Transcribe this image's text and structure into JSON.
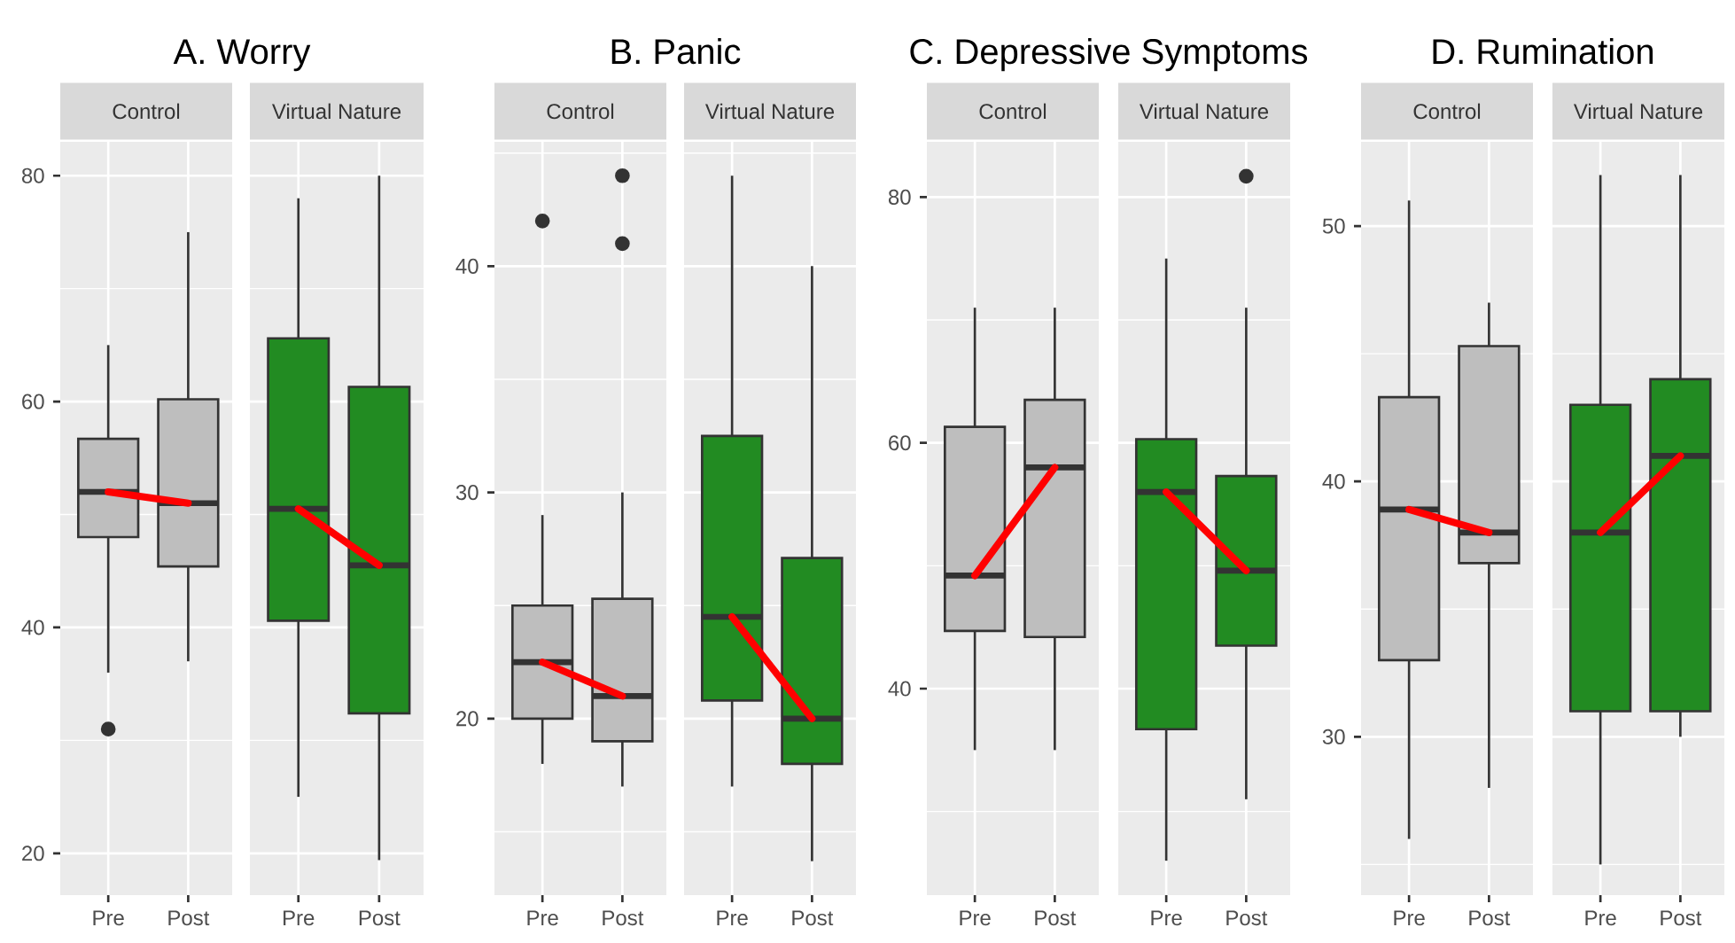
{
  "chart_data": [
    {
      "type": "box",
      "title": "A. Worry",
      "subtitle": "Control",
      "categories": [
        "Pre",
        "Post"
      ],
      "series": [
        {
          "color": "#bebebe",
          "boxes": [
            {
              "low": 36,
              "q1": 48,
              "median": 52,
              "q3": 56.7,
              "high": 65,
              "outliers": [
                31
              ]
            },
            {
              "low": 37,
              "q1": 45.4,
              "median": 51,
              "q3": 60.2,
              "high": 75
            }
          ]
        },
        {
          "type": "line",
          "color": "#ff0000",
          "values": [
            52,
            51
          ]
        }
      ],
      "ylim": [
        16.3,
        83
      ],
      "yticks": [
        20,
        40,
        60,
        80
      ],
      "grid": true
    },
    {
      "type": "box",
      "subtitle": "Virtual Nature",
      "categories": [
        "Pre",
        "Post"
      ],
      "series": [
        {
          "color": "#228b22",
          "boxes": [
            {
              "low": 25,
              "q1": 40.6,
              "median": 50.5,
              "q3": 65.6,
              "high": 78
            },
            {
              "low": 19.4,
              "q1": 32.4,
              "median": 45.5,
              "q3": 61.3,
              "high": 80
            }
          ]
        },
        {
          "type": "line",
          "color": "#ff0000",
          "values": [
            50.5,
            45.5
          ]
        }
      ],
      "ylim": [
        16.3,
        83
      ],
      "yticks": [
        20,
        40,
        60,
        80
      ],
      "grid": true,
      "tick_labels": "x"
    },
    {
      "type": "box",
      "title": "B. Panic",
      "subtitle": "Control",
      "categories": [
        "Pre",
        "Post"
      ],
      "series": [
        {
          "color": "#bebebe",
          "boxes": [
            {
              "low": 18,
              "q1": 20,
              "median": 22.5,
              "q3": 25,
              "high": 29,
              "outliers": [
                42
              ]
            },
            {
              "low": 17,
              "q1": 19,
              "median": 21,
              "q3": 25.3,
              "high": 30,
              "outliers": [
                44,
                41
              ]
            }
          ]
        },
        {
          "type": "line",
          "color": "#ff0000",
          "values": [
            22.5,
            21
          ]
        }
      ],
      "ylim": [
        12.2,
        45.5
      ],
      "yticks": [
        20,
        30,
        40
      ],
      "grid": true
    },
    {
      "type": "box",
      "subtitle": "Virtual Nature",
      "categories": [
        "Pre",
        "Post"
      ],
      "series": [
        {
          "color": "#228b22",
          "boxes": [
            {
              "low": 17,
              "q1": 20.8,
              "median": 24.5,
              "q3": 32.5,
              "high": 44
            },
            {
              "low": 13.7,
              "q1": 18,
              "median": 20,
              "q3": 27.1,
              "high": 40
            }
          ]
        },
        {
          "type": "line",
          "color": "#ff0000",
          "values": [
            24.5,
            20
          ]
        }
      ],
      "ylim": [
        12.2,
        45.5
      ],
      "yticks": [
        20,
        30,
        40
      ],
      "grid": true,
      "tick_labels": "x"
    },
    {
      "type": "box",
      "title": "C. Depressive Symptoms",
      "subtitle": "Control",
      "categories": [
        "Pre",
        "Post"
      ],
      "series": [
        {
          "color": "#bebebe",
          "boxes": [
            {
              "low": 35,
              "q1": 44.7,
              "median": 49.2,
              "q3": 61.3,
              "high": 71
            },
            {
              "low": 35,
              "q1": 44.2,
              "median": 58,
              "q3": 63.5,
              "high": 71
            }
          ]
        },
        {
          "type": "line",
          "color": "#ff0000",
          "values": [
            49.2,
            58
          ]
        }
      ],
      "ylim": [
        23.2,
        84.5
      ],
      "yticks": [
        40,
        60,
        80
      ],
      "grid": true
    },
    {
      "type": "box",
      "subtitle": "Virtual Nature",
      "categories": [
        "Pre",
        "Post"
      ],
      "series": [
        {
          "color": "#228b22",
          "boxes": [
            {
              "low": 26,
              "q1": 36.7,
              "median": 56,
              "q3": 60.3,
              "high": 75
            },
            {
              "low": 31,
              "q1": 43.5,
              "median": 49.6,
              "q3": 57.3,
              "high": 71,
              "outliers": [
                81.7
              ]
            }
          ]
        },
        {
          "type": "line",
          "color": "#ff0000",
          "values": [
            56,
            49.6
          ]
        }
      ],
      "ylim": [
        23.2,
        84.5
      ],
      "yticks": [
        40,
        60,
        80
      ],
      "grid": true,
      "tick_labels": "x"
    },
    {
      "type": "box",
      "title": "D. Rumination",
      "subtitle": "Control",
      "categories": [
        "Pre",
        "Post"
      ],
      "series": [
        {
          "color": "#bebebe",
          "boxes": [
            {
              "low": 26,
              "q1": 33,
              "median": 38.9,
              "q3": 43.3,
              "high": 51
            },
            {
              "low": 28,
              "q1": 36.8,
              "median": 38,
              "q3": 45.3,
              "high": 47
            }
          ]
        },
        {
          "type": "line",
          "color": "#ff0000",
          "values": [
            38.9,
            38
          ]
        }
      ],
      "ylim": [
        23.8,
        53.3
      ],
      "yticks": [
        30,
        40,
        50
      ],
      "grid": true
    },
    {
      "type": "box",
      "subtitle": "Virtual Nature",
      "categories": [
        "Pre",
        "Post"
      ],
      "series": [
        {
          "color": "#228b22",
          "boxes": [
            {
              "low": 25,
              "q1": 31,
              "median": 38,
              "q3": 43,
              "high": 52
            },
            {
              "low": 30,
              "q1": 31,
              "median": 41,
              "q3": 44,
              "high": 52
            }
          ]
        },
        {
          "type": "line",
          "color": "#ff0000",
          "values": [
            38,
            41
          ]
        }
      ],
      "ylim": [
        23.8,
        53.3
      ],
      "yticks": [
        30,
        40,
        50
      ],
      "grid": true,
      "tick_labels": "x"
    }
  ]
}
